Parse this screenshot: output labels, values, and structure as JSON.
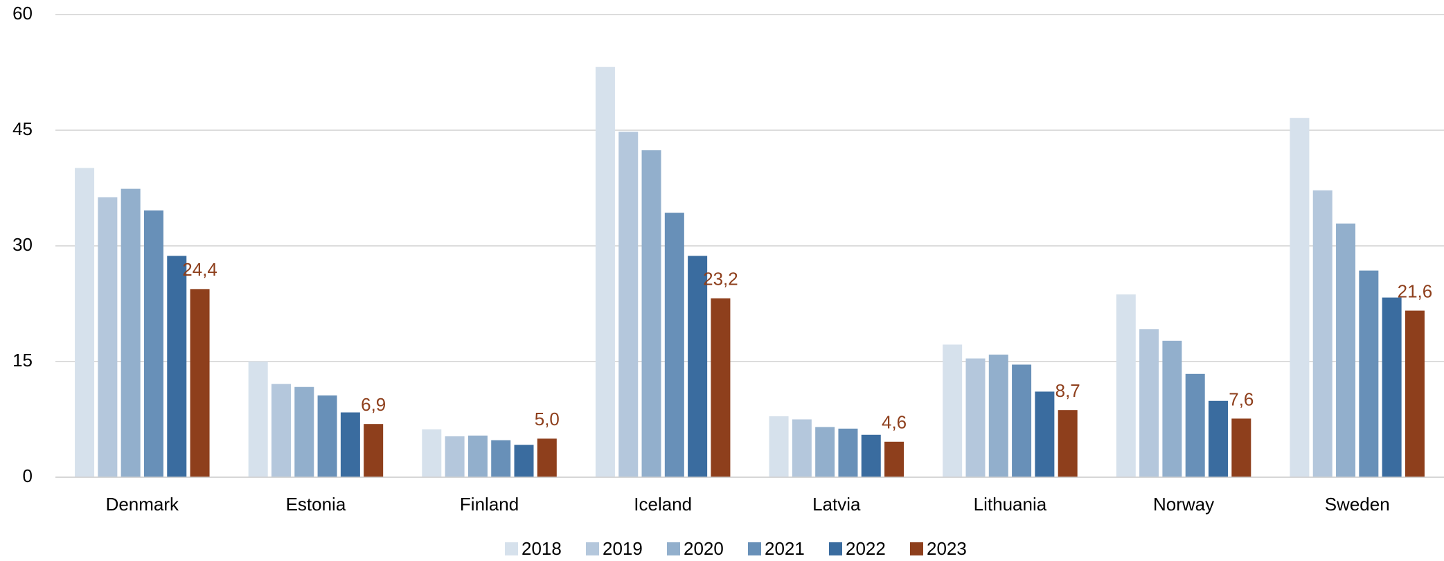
{
  "chart_data": {
    "type": "bar",
    "categories": [
      "Denmark",
      "Estonia",
      "Finland",
      "Iceland",
      "Latvia",
      "Lithuania",
      "Norway",
      "Sweden"
    ],
    "series": [
      {
        "name": "2018",
        "color": "#d6e1ec",
        "values": [
          40.1,
          15.0,
          6.2,
          53.2,
          7.9,
          17.2,
          23.7,
          46.6
        ]
      },
      {
        "name": "2019",
        "color": "#b4c7dc",
        "values": [
          36.3,
          12.1,
          5.3,
          44.8,
          7.5,
          15.4,
          19.2,
          37.2
        ]
      },
      {
        "name": "2020",
        "color": "#92afcc",
        "values": [
          37.4,
          11.7,
          5.4,
          42.4,
          6.5,
          15.9,
          17.7,
          32.9
        ]
      },
      {
        "name": "2021",
        "color": "#6890b8",
        "values": [
          34.6,
          10.6,
          4.8,
          34.3,
          6.3,
          14.6,
          13.4,
          26.8
        ]
      },
      {
        "name": "2022",
        "color": "#3a6c9f",
        "values": [
          28.7,
          8.4,
          4.2,
          28.7,
          5.5,
          11.1,
          9.9,
          23.3
        ]
      },
      {
        "name": "2023",
        "color": "#8e3f1c",
        "values": [
          24.4,
          6.9,
          5.0,
          23.2,
          4.6,
          8.7,
          7.6,
          21.6
        ],
        "value_labels": [
          "24,4",
          "6,9",
          "5,0",
          "23,2",
          "4,6",
          "8,7",
          "7,6",
          "21,6"
        ]
      }
    ],
    "ylim": [
      0,
      60
    ],
    "yticks": [
      0,
      15,
      30,
      45,
      60
    ],
    "grid": true,
    "legend": "bottom"
  }
}
